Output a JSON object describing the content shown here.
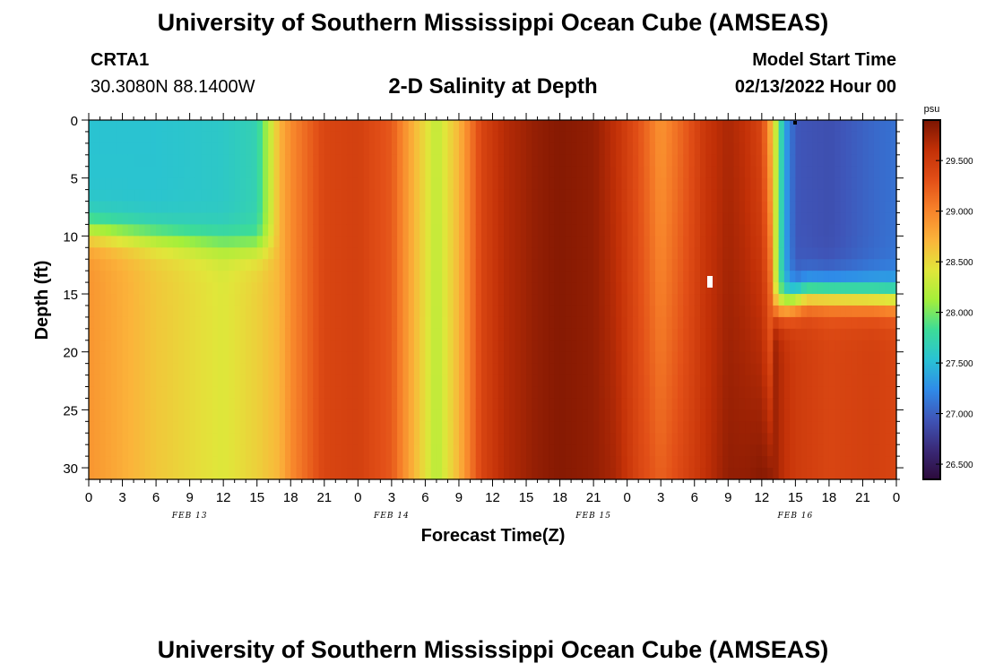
{
  "header": {
    "title": "University of Southern Mississippi Ocean Cube (AMSEAS)",
    "station": "CRTA1",
    "coords": "30.3080N  88.1400W",
    "subtitle": "2-D Salinity at Depth",
    "model_start_label": "Model Start Time",
    "model_start_value": "02/13/2022 Hour 00"
  },
  "footer": {
    "title": "University of Southern Mississippi Ocean Cube (AMSEAS)"
  },
  "chart_data": {
    "type": "heatmap",
    "title": "2-D Salinity at Depth",
    "xlabel": "Forecast Time(Z)",
    "ylabel": "Depth (ft)",
    "x_unit": "hours from model start",
    "xlim": [
      0,
      72
    ],
    "ylim": [
      0,
      31
    ],
    "y_inverted": true,
    "y_ticks": [
      0,
      5,
      10,
      15,
      20,
      25,
      30
    ],
    "y_tick_labels": [
      "0",
      "5",
      "10",
      "15",
      "20",
      "25",
      "30"
    ],
    "x_ticks": [
      0,
      3,
      6,
      9,
      12,
      15,
      18,
      21,
      24,
      27,
      30,
      33,
      36,
      39,
      42,
      45,
      48,
      51,
      54,
      57,
      60,
      63,
      66,
      69,
      72
    ],
    "x_tick_labels": [
      "0",
      "3",
      "6",
      "9",
      "12",
      "15",
      "18",
      "21",
      "0",
      "3",
      "6",
      "9",
      "12",
      "15",
      "18",
      "21",
      "0",
      "3",
      "6",
      "9",
      "12",
      "15",
      "18",
      "21",
      "0"
    ],
    "date_labels": [
      {
        "at": 9,
        "label": "FEB 13"
      },
      {
        "at": 27,
        "label": "FEB 14"
      },
      {
        "at": 45,
        "label": "FEB 15"
      },
      {
        "at": 63,
        "label": "FEB 16"
      }
    ],
    "colorbar": {
      "unit": "psu",
      "min": 26.35,
      "max": 29.9,
      "ticks": [
        26.5,
        27.0,
        27.5,
        28.0,
        28.5,
        29.0,
        29.5
      ],
      "tick_labels": [
        "26.500",
        "27.000",
        "27.500",
        "28.000",
        "28.500",
        "29.000",
        "29.500"
      ],
      "colors": [
        "#2c0a3b",
        "#3a2a78",
        "#3f55b8",
        "#2f8be8",
        "#29c2d4",
        "#3ddc97",
        "#a4ef3a",
        "#e1e63a",
        "#fbb33a",
        "#f7822a",
        "#e24f17",
        "#c23007",
        "#7a1502"
      ]
    },
    "column_profiles_psu": [
      {
        "t": 0,
        "surface": 27.55,
        "bottom": 28.9
      },
      {
        "t": 6,
        "surface": 27.55,
        "bottom": 28.6
      },
      {
        "t": 12,
        "surface": 27.6,
        "bottom": 28.4
      },
      {
        "t": 15,
        "surface": 27.7,
        "bottom": 28.55
      },
      {
        "t": 17,
        "surface": 28.7,
        "bottom": 28.7
      },
      {
        "t": 18,
        "surface": 28.95,
        "bottom": 28.95
      },
      {
        "t": 19,
        "surface": 29.1,
        "bottom": 29.1
      },
      {
        "t": 21,
        "surface": 29.4,
        "bottom": 29.4
      },
      {
        "t": 24,
        "surface": 29.45,
        "bottom": 29.45
      },
      {
        "t": 27,
        "surface": 29.25,
        "bottom": 29.25
      },
      {
        "t": 29,
        "surface": 28.7,
        "bottom": 28.7
      },
      {
        "t": 31,
        "surface": 28.25,
        "bottom": 28.2
      },
      {
        "t": 33,
        "surface": 28.7,
        "bottom": 28.7
      },
      {
        "t": 35,
        "surface": 29.4,
        "bottom": 29.4
      },
      {
        "t": 37,
        "surface": 29.65,
        "bottom": 29.65
      },
      {
        "t": 40,
        "surface": 29.8,
        "bottom": 29.8
      },
      {
        "t": 42,
        "surface": 29.85,
        "bottom": 29.85
      },
      {
        "t": 45,
        "surface": 29.8,
        "bottom": 29.8
      },
      {
        "t": 47,
        "surface": 29.6,
        "bottom": 29.7
      },
      {
        "t": 49,
        "surface": 29.3,
        "bottom": 29.4
      },
      {
        "t": 51,
        "surface": 28.9,
        "bottom": 29.2
      },
      {
        "t": 53,
        "surface": 29.2,
        "bottom": 29.4
      },
      {
        "t": 55,
        "surface": 29.55,
        "bottom": 29.6
      },
      {
        "t": 57,
        "surface": 29.7,
        "bottom": 29.8
      },
      {
        "t": 58.5,
        "surface": 29.6,
        "bottom": 29.8
      },
      {
        "t": 60,
        "surface": 29.4,
        "bottom": 29.85
      },
      {
        "t": 61,
        "surface": 28.6,
        "bottom": 29.8
      },
      {
        "t": 62,
        "surface": 27.4,
        "bottom": 29.6
      },
      {
        "t": 63,
        "surface": 26.95,
        "bottom": 29.5
      },
      {
        "t": 66,
        "surface": 26.9,
        "bottom": 29.4
      },
      {
        "t": 70,
        "surface": 27.05,
        "bottom": 29.45
      },
      {
        "t": 72,
        "surface": 27.1,
        "bottom": 29.4
      }
    ]
  }
}
